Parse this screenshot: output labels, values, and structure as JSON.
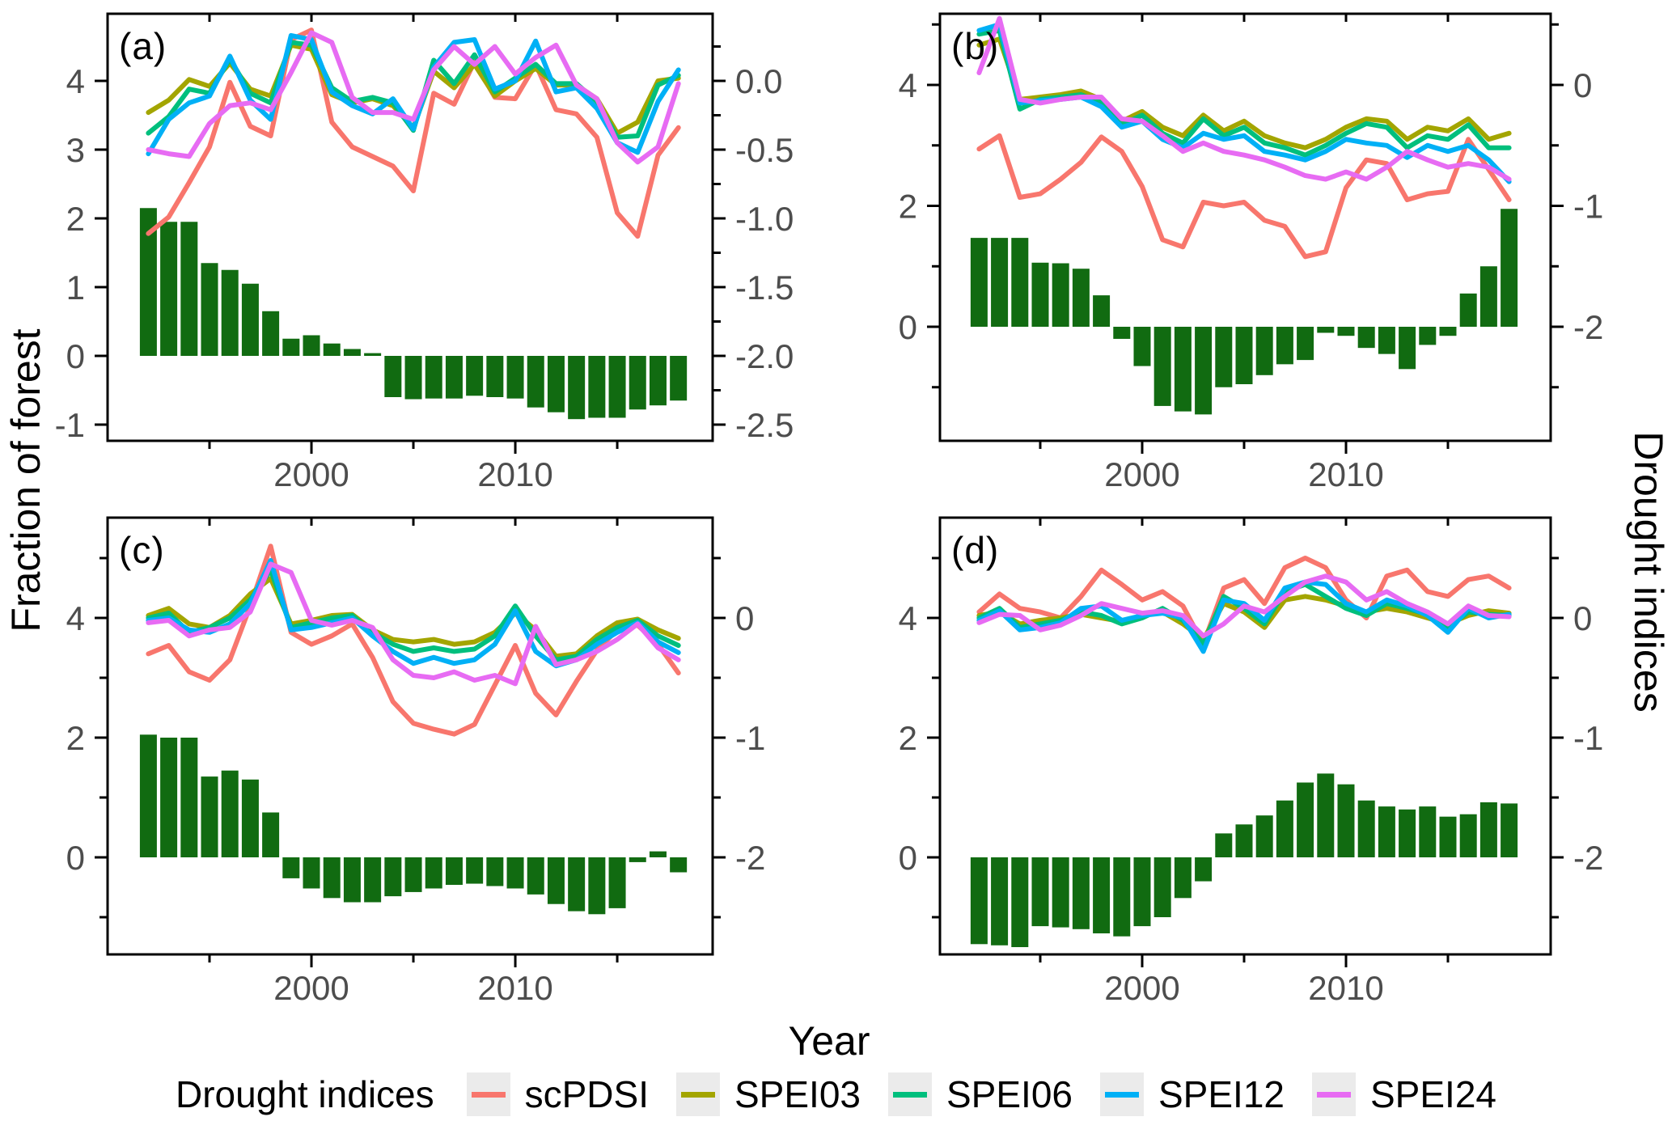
{
  "figure_bg": "#ffffff",
  "axis_titles": {
    "x": "Year",
    "left": "Fraction of forest",
    "right": "Drought indices"
  },
  "legend": {
    "title": "Drought indices",
    "items": [
      {
        "label": "scPDSI",
        "color": "#F8766D"
      },
      {
        "label": "SPEI03",
        "color": "#A3A500"
      },
      {
        "label": "SPEI06",
        "color": "#00BF7D"
      },
      {
        "label": "SPEI12",
        "color": "#00B0F6"
      },
      {
        "label": "SPEI24",
        "color": "#E76BF3"
      }
    ]
  },
  "colors": {
    "bars": "#116B11",
    "frame": "#000000",
    "tick_label": "#4d4d4d"
  },
  "years": [
    1992,
    1993,
    1994,
    1995,
    1996,
    1997,
    1998,
    1999,
    2000,
    2001,
    2002,
    2003,
    2004,
    2005,
    2006,
    2007,
    2008,
    2009,
    2010,
    2011,
    2012,
    2013,
    2014,
    2015,
    2016,
    2017,
    2018
  ],
  "chart_data": [
    {
      "type": "bar+line",
      "panel_label": "(a)",
      "bars_label": "Fraction of forest",
      "x_axis": {
        "major_ticks": [
          2000,
          2010
        ],
        "major_labels": [
          "2000",
          "2010"
        ],
        "minor_ticks": [
          1995,
          2005,
          2015
        ]
      },
      "left_axis": {
        "tick_values": [
          -1,
          0,
          1,
          2,
          3,
          4
        ],
        "tick_labels": [
          "-1",
          "0",
          "1",
          "2",
          "3",
          "4"
        ],
        "minor_tick_values": []
      },
      "right_axis": {
        "tick_values": [
          0,
          -0.5,
          -1,
          -1.5,
          -2,
          -2.5
        ],
        "tick_labels": [
          "0.0",
          "-0.5",
          "-1.0",
          "-1.5",
          "-2.0",
          "-2.5"
        ],
        "minor_tick_values": [
          0.25,
          -0.25,
          -0.75,
          -1.25,
          -1.75,
          -2.25
        ]
      },
      "bars": [
        2.15,
        1.95,
        1.95,
        1.35,
        1.25,
        1.05,
        0.65,
        0.25,
        0.3,
        0.18,
        0.1,
        0.04,
        -0.6,
        -0.63,
        -0.62,
        -0.62,
        -0.58,
        -0.6,
        -0.62,
        -0.75,
        -0.82,
        -0.92,
        -0.9,
        -0.9,
        -0.78,
        -0.72,
        -0.65
      ],
      "series": [
        {
          "name": "scPDSI",
          "values": [
            -1.11,
            -0.99,
            -0.74,
            -0.48,
            -0.01,
            -0.33,
            -0.4,
            0.3,
            0.37,
            -0.3,
            -0.48,
            -0.55,
            -0.62,
            -0.8,
            -0.09,
            -0.17,
            0.14,
            -0.12,
            -0.13,
            0.12,
            -0.21,
            -0.24,
            -0.41,
            -0.96,
            -1.13,
            -0.54,
            -0.34
          ]
        },
        {
          "name": "SPEI03",
          "values": [
            -0.23,
            -0.14,
            0.01,
            -0.04,
            0.13,
            -0.06,
            -0.11,
            0.26,
            0.23,
            -0.1,
            -0.16,
            -0.13,
            -0.18,
            -0.34,
            0.07,
            -0.05,
            0.12,
            -0.11,
            0.0,
            0.09,
            -0.03,
            -0.03,
            -0.13,
            -0.38,
            -0.3,
            0.0,
            0.02
          ]
        },
        {
          "name": "SPEI06",
          "values": [
            -0.38,
            -0.26,
            -0.06,
            -0.09,
            0.16,
            -0.09,
            -0.16,
            0.28,
            0.26,
            -0.05,
            -0.15,
            -0.12,
            -0.16,
            -0.36,
            0.15,
            -0.02,
            0.19,
            -0.08,
            0.02,
            0.12,
            -0.02,
            -0.02,
            -0.15,
            -0.41,
            -0.4,
            -0.03,
            0.04
          ]
        },
        {
          "name": "SPEI12",
          "values": [
            -0.53,
            -0.28,
            -0.16,
            -0.11,
            0.18,
            -0.14,
            -0.28,
            0.33,
            0.3,
            -0.08,
            -0.18,
            -0.24,
            -0.13,
            -0.35,
            0.1,
            0.28,
            0.3,
            -0.06,
            0.0,
            0.29,
            -0.08,
            -0.05,
            -0.2,
            -0.45,
            -0.52,
            -0.15,
            0.08
          ]
        },
        {
          "name": "SPEI24",
          "values": [
            -0.5,
            -0.53,
            -0.55,
            -0.31,
            -0.18,
            -0.16,
            -0.21,
            0.06,
            0.35,
            0.28,
            -0.12,
            -0.23,
            -0.23,
            -0.28,
            0.08,
            0.25,
            0.12,
            0.25,
            0.05,
            0.17,
            0.26,
            -0.03,
            -0.13,
            -0.45,
            -0.59,
            -0.48,
            -0.02
          ]
        }
      ]
    },
    {
      "type": "bar+line",
      "panel_label": "(b)",
      "bars_label": "Fraction of forest",
      "x_axis": {
        "major_ticks": [
          2000,
          2010
        ],
        "major_labels": [
          "2000",
          "2010"
        ],
        "minor_ticks": [
          1995,
          2005,
          2015
        ]
      },
      "left_axis": {
        "tick_values": [
          0,
          2,
          4
        ],
        "tick_labels": [
          "0",
          "2",
          "4"
        ],
        "minor_tick_values": [
          5,
          3,
          1,
          -1
        ]
      },
      "right_axis": {
        "tick_values": [
          0,
          -1,
          -2
        ],
        "tick_labels": [
          "0",
          "-1",
          "-2"
        ],
        "minor_tick_values": [
          0.5,
          -0.5,
          -1.5,
          -2.5
        ]
      },
      "bars": [
        1.47,
        1.47,
        1.47,
        1.06,
        1.05,
        0.96,
        0.52,
        -0.2,
        -0.65,
        -1.31,
        -1.4,
        -1.45,
        -1.0,
        -0.95,
        -0.8,
        -0.62,
        -0.55,
        -0.1,
        -0.15,
        -0.35,
        -0.45,
        -0.7,
        -0.3,
        -0.15,
        0.55,
        1.0,
        1.95
      ],
      "series": [
        {
          "name": "scPDSI",
          "values": [
            -0.53,
            -0.42,
            -0.93,
            -0.9,
            -0.78,
            -0.64,
            -0.43,
            -0.55,
            -0.84,
            -1.28,
            -1.34,
            -0.97,
            -1.0,
            -0.97,
            -1.12,
            -1.17,
            -1.42,
            -1.38,
            -0.85,
            -0.62,
            -0.65,
            -0.95,
            -0.9,
            -0.88,
            -0.45,
            -0.7,
            -0.95
          ]
        },
        {
          "name": "SPEI03",
          "values": [
            0.33,
            0.38,
            -0.12,
            -0.1,
            -0.08,
            -0.05,
            -0.12,
            -0.3,
            -0.22,
            -0.35,
            -0.42,
            -0.25,
            -0.38,
            -0.3,
            -0.42,
            -0.48,
            -0.52,
            -0.45,
            -0.35,
            -0.28,
            -0.3,
            -0.45,
            -0.35,
            -0.38,
            -0.28,
            -0.45,
            -0.4
          ]
        },
        {
          "name": "SPEI06",
          "values": [
            0.42,
            0.45,
            -0.2,
            -0.12,
            -0.1,
            -0.08,
            -0.15,
            -0.33,
            -0.25,
            -0.4,
            -0.48,
            -0.28,
            -0.42,
            -0.35,
            -0.48,
            -0.52,
            -0.58,
            -0.5,
            -0.4,
            -0.32,
            -0.35,
            -0.52,
            -0.42,
            -0.45,
            -0.33,
            -0.52,
            -0.52
          ]
        },
        {
          "name": "SPEI12",
          "values": [
            0.45,
            0.5,
            -0.15,
            -0.13,
            -0.12,
            -0.1,
            -0.18,
            -0.35,
            -0.3,
            -0.45,
            -0.52,
            -0.4,
            -0.45,
            -0.42,
            -0.55,
            -0.58,
            -0.62,
            -0.55,
            -0.45,
            -0.48,
            -0.5,
            -0.6,
            -0.5,
            -0.55,
            -0.5,
            -0.62,
            -0.8
          ]
        },
        {
          "name": "SPEI24",
          "values": [
            0.1,
            0.55,
            -0.12,
            -0.15,
            -0.12,
            -0.1,
            -0.1,
            -0.28,
            -0.3,
            -0.42,
            -0.55,
            -0.48,
            -0.55,
            -0.58,
            -0.62,
            -0.68,
            -0.75,
            -0.78,
            -0.72,
            -0.78,
            -0.68,
            -0.55,
            -0.62,
            -0.68,
            -0.65,
            -0.68,
            -0.78
          ]
        }
      ]
    },
    {
      "type": "bar+line",
      "panel_label": "(c)",
      "bars_label": "Fraction of forest",
      "x_axis": {
        "major_ticks": [
          2000,
          2010
        ],
        "major_labels": [
          "2000",
          "2010"
        ],
        "minor_ticks": [
          1995,
          2005,
          2015
        ]
      },
      "left_axis": {
        "tick_values": [
          0,
          2,
          4
        ],
        "tick_labels": [
          "0",
          "2",
          "4"
        ],
        "minor_tick_values": [
          5,
          3,
          1,
          -1
        ]
      },
      "right_axis": {
        "tick_values": [
          0,
          -1,
          -2
        ],
        "tick_labels": [
          "0",
          "-1",
          "-2"
        ],
        "minor_tick_values": [
          0.5,
          -0.5,
          -1.5,
          -2.5
        ]
      },
      "bars": [
        2.05,
        2.0,
        2.0,
        1.35,
        1.45,
        1.3,
        0.75,
        -0.35,
        -0.52,
        -0.68,
        -0.75,
        -0.75,
        -0.65,
        -0.58,
        -0.52,
        -0.46,
        -0.44,
        -0.48,
        -0.52,
        -0.62,
        -0.78,
        -0.9,
        -0.95,
        -0.85,
        -0.08,
        0.1,
        -0.25
      ],
      "series": [
        {
          "name": "scPDSI",
          "values": [
            -0.3,
            -0.23,
            -0.45,
            -0.52,
            -0.35,
            0.1,
            0.6,
            -0.12,
            -0.22,
            -0.15,
            -0.05,
            -0.33,
            -0.7,
            -0.88,
            -0.93,
            -0.97,
            -0.89,
            -0.56,
            -0.23,
            -0.63,
            -0.81,
            -0.53,
            -0.27,
            -0.1,
            -0.06,
            -0.22,
            -0.46
          ]
        },
        {
          "name": "SPEI03",
          "values": [
            0.02,
            0.08,
            -0.05,
            -0.08,
            0.02,
            0.2,
            0.33,
            -0.05,
            -0.02,
            0.02,
            0.03,
            -0.1,
            -0.18,
            -0.2,
            -0.18,
            -0.22,
            -0.2,
            -0.12,
            0.04,
            -0.1,
            -0.32,
            -0.3,
            -0.15,
            -0.04,
            -0.01,
            -0.1,
            -0.17
          ]
        },
        {
          "name": "SPEI06",
          "values": [
            0.0,
            0.04,
            -0.12,
            -0.08,
            0.0,
            0.15,
            0.4,
            -0.08,
            -0.04,
            0.0,
            0.02,
            -0.12,
            -0.22,
            -0.28,
            -0.25,
            -0.28,
            -0.26,
            -0.15,
            0.1,
            -0.15,
            -0.35,
            -0.32,
            -0.18,
            -0.08,
            -0.02,
            -0.15,
            -0.23
          ]
        },
        {
          "name": "SPEI12",
          "values": [
            -0.02,
            0.0,
            -0.1,
            -0.12,
            -0.05,
            0.12,
            0.48,
            -0.1,
            -0.08,
            -0.04,
            0.0,
            -0.15,
            -0.28,
            -0.38,
            -0.33,
            -0.38,
            -0.35,
            -0.22,
            0.06,
            -0.28,
            -0.4,
            -0.35,
            -0.22,
            -0.12,
            -0.04,
            -0.2,
            -0.29
          ]
        },
        {
          "name": "SPEI24",
          "values": [
            -0.04,
            -0.02,
            -0.15,
            -0.1,
            -0.08,
            0.05,
            0.45,
            0.38,
            -0.02,
            -0.06,
            -0.02,
            -0.08,
            -0.35,
            -0.48,
            -0.5,
            -0.45,
            -0.52,
            -0.48,
            -0.55,
            -0.07,
            -0.39,
            -0.35,
            -0.28,
            -0.18,
            -0.05,
            -0.25,
            -0.35
          ]
        }
      ]
    },
    {
      "type": "bar+line",
      "panel_label": "(d)",
      "bars_label": "Fraction of forest",
      "x_axis": {
        "major_ticks": [
          2000,
          2010
        ],
        "major_labels": [
          "2000",
          "2010"
        ],
        "minor_ticks": [
          1995,
          2005,
          2015
        ]
      },
      "left_axis": {
        "tick_values": [
          0,
          2,
          4
        ],
        "tick_labels": [
          "0",
          "2",
          "4"
        ],
        "minor_tick_values": [
          5,
          3,
          1,
          -1
        ]
      },
      "right_axis": {
        "tick_values": [
          0,
          -1,
          -2
        ],
        "tick_labels": [
          "0",
          "-1",
          "-2"
        ],
        "minor_tick_values": [
          0.5,
          -0.5,
          -1.5,
          -2.5
        ]
      },
      "bars": [
        -1.45,
        -1.47,
        -1.5,
        -1.15,
        -1.17,
        -1.2,
        -1.27,
        -1.32,
        -1.15,
        -1.0,
        -0.68,
        -0.4,
        0.4,
        0.55,
        0.7,
        0.95,
        1.25,
        1.4,
        1.22,
        0.95,
        0.85,
        0.8,
        0.85,
        0.68,
        0.72,
        0.92,
        0.9
      ],
      "series": [
        {
          "name": "scPDSI",
          "values": [
            0.05,
            0.2,
            0.08,
            0.05,
            0.0,
            0.18,
            0.4,
            0.28,
            0.15,
            0.22,
            0.1,
            -0.22,
            0.25,
            0.32,
            0.12,
            0.42,
            0.5,
            0.42,
            0.15,
            0.0,
            0.35,
            0.4,
            0.22,
            0.18,
            0.32,
            0.35,
            0.25
          ]
        },
        {
          "name": "SPEI03",
          "values": [
            0.02,
            0.05,
            -0.05,
            -0.02,
            0.0,
            0.03,
            0.0,
            -0.03,
            0.02,
            0.05,
            -0.05,
            -0.18,
            0.12,
            0.05,
            -0.08,
            0.15,
            0.18,
            0.15,
            0.1,
            0.05,
            0.08,
            0.05,
            0.0,
            -0.05,
            0.02,
            0.06,
            0.04
          ]
        },
        {
          "name": "SPEI06",
          "values": [
            0.0,
            0.08,
            -0.08,
            -0.05,
            -0.02,
            0.05,
            0.02,
            -0.05,
            0.0,
            0.08,
            -0.02,
            -0.22,
            0.18,
            0.08,
            -0.05,
            0.22,
            0.28,
            0.18,
            0.08,
            0.02,
            0.12,
            0.08,
            0.03,
            -0.08,
            0.05,
            0.03,
            0.02
          ]
        },
        {
          "name": "SPEI12",
          "values": [
            -0.02,
            0.06,
            -0.1,
            -0.08,
            -0.04,
            0.08,
            0.1,
            -0.02,
            0.02,
            0.04,
            0.0,
            -0.28,
            0.15,
            0.12,
            -0.02,
            0.25,
            0.3,
            0.28,
            0.12,
            0.05,
            0.15,
            0.1,
            0.02,
            -0.12,
            0.08,
            0.0,
            0.03
          ]
        },
        {
          "name": "SPEI24",
          "values": [
            -0.04,
            0.03,
            0.02,
            -0.1,
            -0.06,
            0.02,
            0.12,
            0.08,
            0.04,
            0.06,
            0.02,
            -0.15,
            -0.05,
            0.1,
            0.05,
            0.18,
            0.3,
            0.35,
            0.3,
            0.15,
            0.22,
            0.12,
            0.05,
            -0.05,
            0.1,
            0.02,
            0.01
          ]
        }
      ]
    }
  ]
}
